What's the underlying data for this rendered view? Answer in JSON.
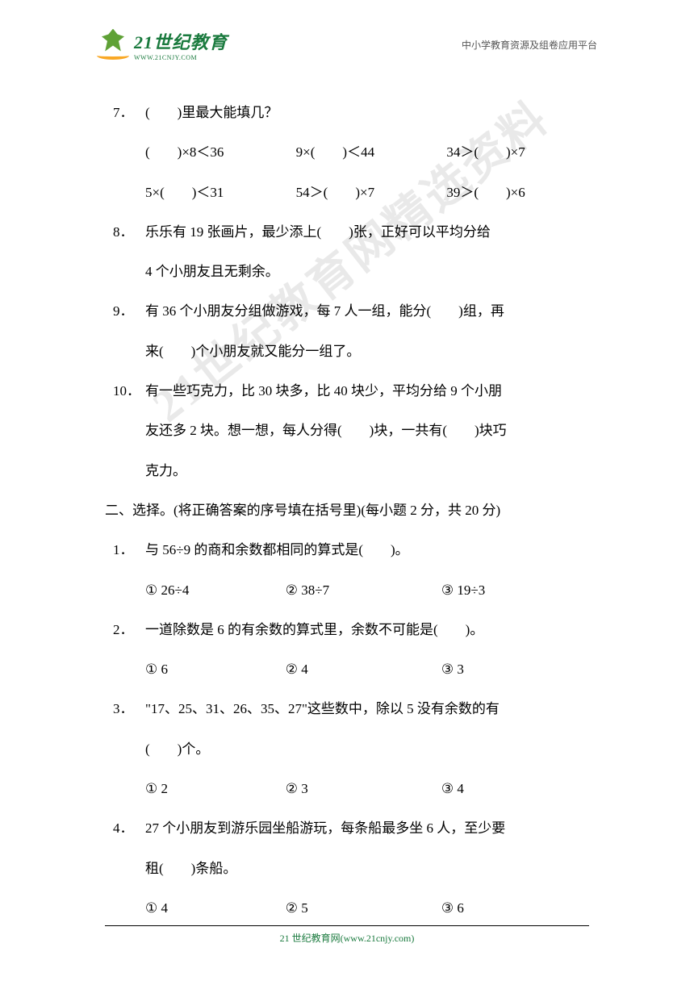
{
  "header": {
    "logo_main": "21世纪教育",
    "logo_sub": "WWW.21CNJY.COM",
    "right_text": "中小学教育资源及组卷应用平台"
  },
  "watermark": "21世纪教育网精选资料",
  "questions": {
    "q7": {
      "num": "7．",
      "text": "(　　)里最大能填几？",
      "row1": {
        "a": "(　　)×8＜36",
        "b": "9×(　　)＜44",
        "c": "34＞(　　)×7"
      },
      "row2": {
        "a": "5×(　　)＜31",
        "b": "54＞(　　)×7",
        "c": "39＞(　　)×6"
      }
    },
    "q8": {
      "num": "8．",
      "line1": "乐乐有 19 张画片，最少添上(　　)张，正好可以平均分给",
      "line2": "4 个小朋友且无剩余。"
    },
    "q9": {
      "num": "9．",
      "line1": "有 36 个小朋友分组做游戏，每 7 人一组，能分(　　)组，再",
      "line2": "来(　　)个小朋友就又能分一组了。"
    },
    "q10": {
      "num": "10．",
      "line1": "有一些巧克力，比 30 块多，比 40 块少，平均分给 9 个小朋",
      "line2": "友还多 2 块。想一想，每人分得(　　)块，一共有(　　)块巧",
      "line3": "克力。"
    }
  },
  "section2": {
    "header": "二、选择。(将正确答案的序号填在括号里)(每小题 2 分，共 20 分)",
    "q1": {
      "num": "1．",
      "text": "与 56÷9 的商和余数都相同的算式是(　　)。",
      "opts": {
        "a": "①  26÷4",
        "b": "②  38÷7",
        "c": "③  19÷3"
      }
    },
    "q2": {
      "num": "2．",
      "text": "一道除数是 6 的有余数的算式里，余数不可能是(　　)。",
      "opts": {
        "a": "①  6",
        "b": "②  4",
        "c": "③  3"
      }
    },
    "q3": {
      "num": "3．",
      "line1": "\"17、25、31、26、35、27\"这些数中，除以 5 没有余数的有",
      "line2": "(　　)个。",
      "opts": {
        "a": "①  2",
        "b": "②  3",
        "c": "③  4"
      }
    },
    "q4": {
      "num": "4．",
      "line1": "27 个小朋友到游乐园坐船游玩，每条船最多坐 6 人，至少要",
      "line2": "租(　　)条船。",
      "opts": {
        "a": "①  4",
        "b": "②  5",
        "c": "③  6"
      }
    }
  },
  "footer": "21 世纪教育网(www.21cnjy.com)"
}
